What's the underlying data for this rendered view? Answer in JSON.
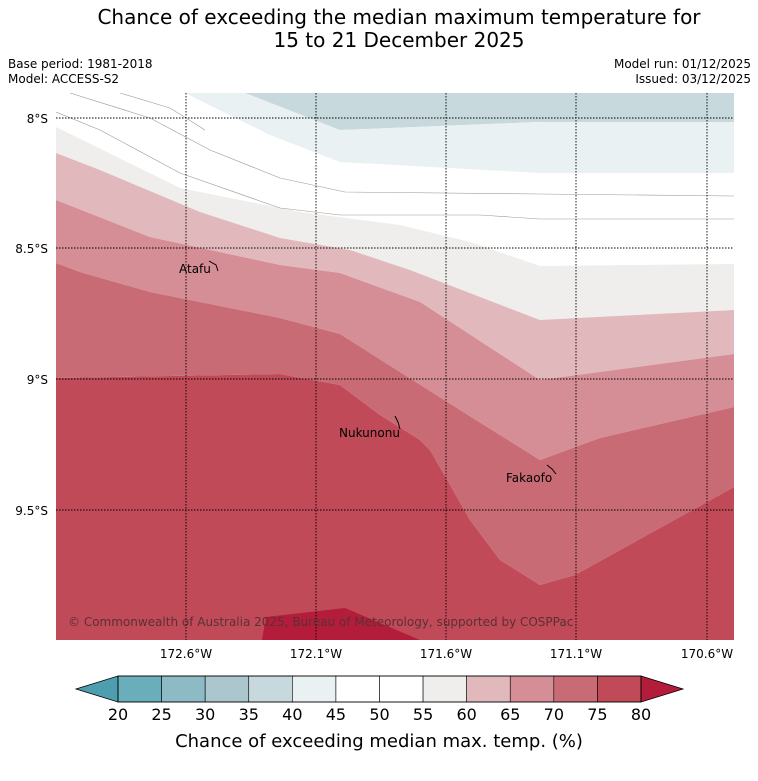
{
  "title_line1": "Chance of exceeding the median maximum temperature for",
  "title_line2": "15 to 21 December 2025",
  "meta_left": {
    "base_period": "Base period: 1981-2018",
    "model": "Model: ACCESS-S2"
  },
  "meta_right": {
    "model_run": "Model run: 01/12/2025",
    "issued": "Issued: 03/12/2025"
  },
  "latitudes": [
    "8°S",
    "8.5°S",
    "9°S",
    "9.5°S"
  ],
  "longitudes": [
    "172.6°W",
    "172.1°W",
    "171.6°W",
    "171.1°W",
    "170.6°W"
  ],
  "places": {
    "atafu": "Atafu",
    "nukunonu": "Nukunonu",
    "fakaofo": "Fakaofo"
  },
  "copyright": "© Commonwealth of Australia 2025, Bureau of Meteorology, supported by COSPPac",
  "colorbar": {
    "title": "Chance of exceeding median max. temp. (%)",
    "ticks": [
      "20",
      "25",
      "30",
      "35",
      "40",
      "45",
      "50",
      "55",
      "60",
      "65",
      "70",
      "75",
      "80"
    ],
    "colors": {
      "below20": "#4d9fb0",
      "c20_25": "#6aadbb",
      "c25_30": "#8cbac5",
      "c30_35": "#abc7cd",
      "c35_40": "#c8d9dd",
      "c40_45": "#eaf1f3",
      "c45_50": "#ffffff",
      "c50_55": "#ffffff",
      "c55_60": "#efeeec",
      "c60_65": "#e1b9bd",
      "c65_70": "#d58e95",
      "c70_75": "#c96b75",
      "c75_80": "#c04a57",
      "above80": "#b31d3b"
    }
  }
}
